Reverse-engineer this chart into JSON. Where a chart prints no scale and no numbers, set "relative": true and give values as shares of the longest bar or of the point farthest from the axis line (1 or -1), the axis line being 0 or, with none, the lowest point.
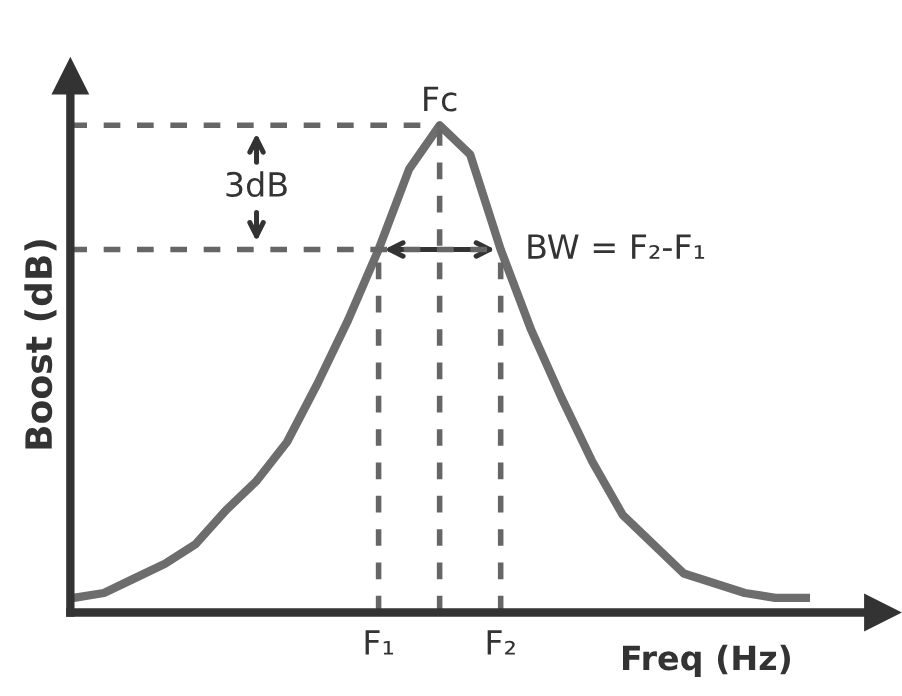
{
  "chart_data": {
    "type": "line",
    "relative": true,
    "xlabel": "Freq (Hz)",
    "ylabel": "Boost (dB)",
    "categories": [
      null,
      null,
      null,
      null,
      null,
      null,
      null,
      null,
      null,
      null,
      "F₁",
      null,
      null,
      null,
      "F₂",
      null,
      null,
      null,
      null,
      null,
      null,
      null,
      null,
      null,
      null
    ],
    "series": [
      {
        "color": "#6d6d6d",
        "values": [
          0.03,
          0.04,
          0.07,
          0.1,
          0.14,
          0.21,
          0.27,
          0.35,
          0.47,
          0.6,
          0.745,
          0.91,
          1.0,
          0.94,
          0.745,
          0.58,
          0.44,
          0.31,
          0.2,
          0.14,
          0.08,
          0.06,
          0.04,
          0.03,
          0.03
        ]
      }
    ],
    "ref_lines": [
      {
        "axis": "y",
        "value": 1.0,
        "color": "#666666",
        "line_style": "dashed"
      },
      {
        "axis": "y",
        "value": 0.745,
        "color": "#666666",
        "line_style": "dashed"
      }
    ],
    "annotations": [
      "Fc",
      "3dB",
      "BW = F₂-F₁"
    ],
    "marker": "none",
    "line_style": "solid",
    "grid": "x"
  }
}
